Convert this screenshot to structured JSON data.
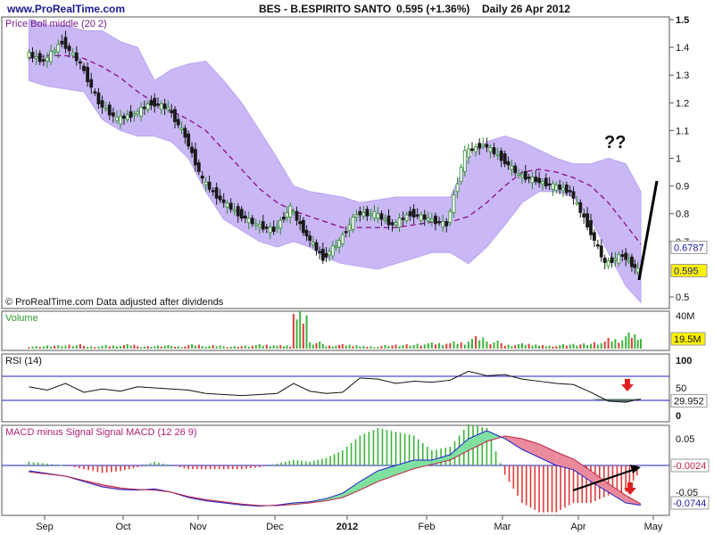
{
  "header": {
    "site": "www.ProRealTime.com",
    "title": "BES - B.ESPIRITO SANTO",
    "price": "0.595 (+1.36%)",
    "period": "Daily  26 Apr 2012"
  },
  "colors": {
    "band": "#c9b8f5",
    "middle": "#8b0a8a",
    "candle_up": "#2e8b2e",
    "candle_down": "#1a1a1a",
    "volume_up": "#3cb43c",
    "volume_down": "#e03b3b",
    "rsi_line": "#111111",
    "rsi_low": "#3a5a3a",
    "grid_blue": "#1c1ccc",
    "macd_pos": "#3cb43c",
    "macd_neg": "#e03b3b",
    "macd_fill_up": "#7fe0a0",
    "macd_fill_down": "#e98b9c",
    "badge": "#fff200"
  },
  "annotations": {
    "question": "??",
    "copyright": "© ProRealTime.com  Data adjusted after dividends"
  },
  "x_axis": [
    "Sep",
    "Oct",
    "Nov",
    "Dec",
    "2012",
    "Feb",
    "Mar",
    "Apr",
    "May"
  ],
  "chart_data": [
    {
      "type": "line",
      "panel": "price",
      "title": "Price Boll middle (20 2)",
      "ylim": [
        0.5,
        1.5
      ],
      "yticks": [
        "1.5",
        "1.4",
        "1.3",
        "1.2",
        "1.1",
        "1",
        "0.9",
        "0.8",
        "0.7",
        "0.5"
      ],
      "badges": [
        {
          "label": "0.6787",
          "value": 0.6787
        },
        {
          "label": "0.595",
          "value": 0.595
        }
      ],
      "x": [
        "2011-08-26",
        "2011-09-02",
        "2011-09-09",
        "2011-09-16",
        "2011-09-23",
        "2011-09-30",
        "2011-10-07",
        "2011-10-14",
        "2011-10-21",
        "2011-10-28",
        "2011-11-04",
        "2011-11-11",
        "2011-11-18",
        "2011-11-25",
        "2011-12-02",
        "2011-12-09",
        "2011-12-16",
        "2011-12-23",
        "2011-12-30",
        "2012-01-06",
        "2012-01-13",
        "2012-01-20",
        "2012-01-27",
        "2012-02-03",
        "2012-02-10",
        "2012-02-17",
        "2012-02-24",
        "2012-03-02",
        "2012-03-09",
        "2012-03-16",
        "2012-03-23",
        "2012-03-30",
        "2012-04-06",
        "2012-04-13",
        "2012-04-20",
        "2012-04-26"
      ],
      "series": [
        {
          "values": [
            1.38,
            1.35,
            1.42,
            1.34,
            1.2,
            1.14,
            1.16,
            1.2,
            1.18,
            1.08,
            0.92,
            0.85,
            0.8,
            0.76,
            0.74,
            0.82,
            0.72,
            0.64,
            0.7,
            0.8,
            0.8,
            0.76,
            0.8,
            0.78,
            0.76,
            1.02,
            1.05,
            1.0,
            0.94,
            0.92,
            0.9,
            0.88,
            0.76,
            0.62,
            0.65,
            0.595
          ]
        },
        {
          "values": [
            1.36,
            1.37,
            1.37,
            1.36,
            1.33,
            1.29,
            1.24,
            1.2,
            1.17,
            1.14,
            1.1,
            1.03,
            0.96,
            0.89,
            0.84,
            0.81,
            0.79,
            0.77,
            0.75,
            0.75,
            0.75,
            0.75,
            0.76,
            0.77,
            0.77,
            0.79,
            0.84,
            0.9,
            0.95,
            0.96,
            0.95,
            0.93,
            0.9,
            0.84,
            0.76,
            0.69
          ]
        },
        {
          "values": [
            1.5,
            1.48,
            1.48,
            1.46,
            1.46,
            1.42,
            1.4,
            1.28,
            1.32,
            1.34,
            1.35,
            1.28,
            1.2,
            1.1,
            1.0,
            0.9,
            0.88,
            0.87,
            0.86,
            0.84,
            0.85,
            0.86,
            0.86,
            0.86,
            0.86,
            1.0,
            1.06,
            1.08,
            1.06,
            1.03,
            1.0,
            0.98,
            0.98,
            1.0,
            0.98,
            0.88
          ]
        },
        {
          "values": [
            1.28,
            1.26,
            1.25,
            1.24,
            1.14,
            1.1,
            1.08,
            1.08,
            1.06,
            1.0,
            0.88,
            0.78,
            0.74,
            0.7,
            0.68,
            0.7,
            0.68,
            0.64,
            0.62,
            0.61,
            0.6,
            0.62,
            0.64,
            0.66,
            0.66,
            0.62,
            0.68,
            0.76,
            0.84,
            0.88,
            0.88,
            0.86,
            0.78,
            0.66,
            0.54,
            0.48
          ]
        }
      ]
    },
    {
      "type": "bar",
      "panel": "volume",
      "title": "Volume",
      "yticks": [
        "40M"
      ],
      "badges": [
        {
          "label": "19.5M",
          "value": 19.5
        }
      ],
      "values": [
        3,
        4,
        5,
        3,
        4,
        5,
        3,
        4,
        3,
        5,
        4,
        3,
        4,
        5,
        4,
        42,
        8,
        4,
        5,
        3,
        4,
        5,
        6,
        7,
        8,
        14,
        9,
        5,
        6,
        4,
        5,
        6,
        8,
        12,
        18,
        19.5
      ]
    },
    {
      "type": "line",
      "panel": "rsi",
      "title": "RSI (14)",
      "ylim": [
        0,
        100
      ],
      "yticks": [
        "100",
        "50",
        "0"
      ],
      "badges": [
        {
          "label": "29.952",
          "value": 29.952
        }
      ],
      "values": [
        52,
        46,
        58,
        42,
        48,
        44,
        52,
        50,
        48,
        46,
        40,
        38,
        36,
        38,
        40,
        58,
        44,
        40,
        42,
        68,
        66,
        58,
        62,
        60,
        64,
        80,
        72,
        74,
        66,
        62,
        58,
        56,
        42,
        26,
        24,
        29.952
      ]
    },
    {
      "type": "bar",
      "panel": "macd",
      "title": "MACD minus Signal Signal MACD (12 26 9)",
      "ylim": [
        -0.08,
        0.08
      ],
      "yticks": [
        "0.05",
        "0",
        "-0.05"
      ],
      "badges": [
        {
          "label": "-0.0024",
          "value": -0.0024
        },
        {
          "label": "-0.0744",
          "value": -0.0744
        }
      ],
      "series": [
        {
          "name": "MACD",
          "values": [
            -0.01,
            -0.015,
            -0.02,
            -0.03,
            -0.04,
            -0.045,
            -0.046,
            -0.044,
            -0.05,
            -0.06,
            -0.066,
            -0.07,
            -0.074,
            -0.076,
            -0.074,
            -0.07,
            -0.068,
            -0.062,
            -0.052,
            -0.03,
            -0.01,
            0.0,
            0.01,
            0.01,
            0.02,
            0.05,
            0.065,
            0.05,
            0.03,
            0.015,
            0.0,
            -0.008,
            -0.03,
            -0.05,
            -0.07,
            -0.0744
          ]
        },
        {
          "name": "Signal",
          "values": [
            -0.012,
            -0.016,
            -0.02,
            -0.028,
            -0.036,
            -0.042,
            -0.045,
            -0.046,
            -0.05,
            -0.058,
            -0.064,
            -0.068,
            -0.072,
            -0.075,
            -0.075,
            -0.073,
            -0.07,
            -0.066,
            -0.06,
            -0.046,
            -0.03,
            -0.018,
            -0.006,
            0.002,
            0.01,
            0.028,
            0.045,
            0.055,
            0.05,
            0.04,
            0.025,
            0.012,
            -0.01,
            -0.034,
            -0.056,
            -0.072
          ]
        }
      ]
    }
  ]
}
